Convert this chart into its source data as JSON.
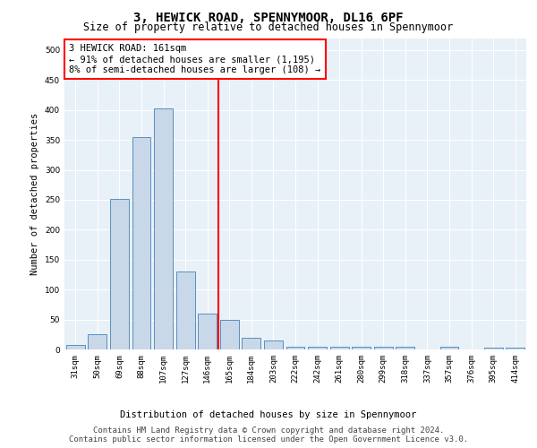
{
  "title": "3, HEWICK ROAD, SPENNYMOOR, DL16 6PF",
  "subtitle": "Size of property relative to detached houses in Spennymoor",
  "xlabel": "Distribution of detached houses by size in Spennymoor",
  "ylabel": "Number of detached properties",
  "categories": [
    "31sqm",
    "50sqm",
    "69sqm",
    "88sqm",
    "107sqm",
    "127sqm",
    "146sqm",
    "165sqm",
    "184sqm",
    "203sqm",
    "222sqm",
    "242sqm",
    "261sqm",
    "280sqm",
    "299sqm",
    "318sqm",
    "337sqm",
    "357sqm",
    "376sqm",
    "395sqm",
    "414sqm"
  ],
  "values": [
    7,
    25,
    252,
    355,
    403,
    130,
    60,
    50,
    20,
    15,
    5,
    5,
    5,
    5,
    5,
    5,
    0,
    5,
    0,
    3,
    3
  ],
  "bar_color": "#c8d8e8",
  "bar_edge_color": "#5a8fc0",
  "vline_x_index": 7,
  "vline_color": "red",
  "annotation_text": "3 HEWICK ROAD: 161sqm\n← 91% of detached houses are smaller (1,195)\n8% of semi-detached houses are larger (108) →",
  "annotation_box_color": "white",
  "annotation_box_edge_color": "red",
  "ylim": [
    0,
    520
  ],
  "yticks": [
    0,
    50,
    100,
    150,
    200,
    250,
    300,
    350,
    400,
    450,
    500
  ],
  "background_color": "#e8f0f8",
  "grid_color": "white",
  "footer_line1": "Contains HM Land Registry data © Crown copyright and database right 2024.",
  "footer_line2": "Contains public sector information licensed under the Open Government Licence v3.0.",
  "title_fontsize": 10,
  "subtitle_fontsize": 8.5,
  "axis_label_fontsize": 7.5,
  "tick_fontsize": 6.5,
  "annotation_fontsize": 7.5,
  "footer_fontsize": 6.5,
  "ylabel_fontsize": 7.5
}
